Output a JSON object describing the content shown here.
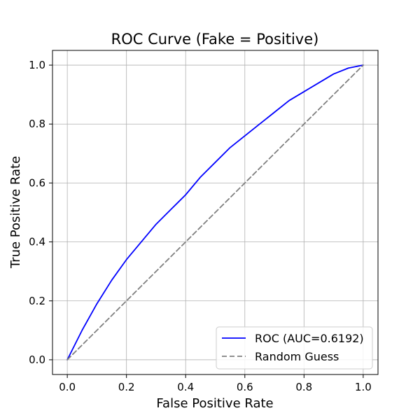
{
  "chart_data": {
    "type": "line",
    "title": "ROC Curve (Fake = Positive)",
    "xlabel": "False Positive Rate",
    "ylabel": "True Positive Rate",
    "xlim": [
      -0.05,
      1.05
    ],
    "ylim": [
      -0.05,
      1.05
    ],
    "xticks": [
      "0.0",
      "0.2",
      "0.4",
      "0.6",
      "0.8",
      "1.0"
    ],
    "yticks": [
      "0.0",
      "0.2",
      "0.4",
      "0.6",
      "0.8",
      "1.0"
    ],
    "grid": true,
    "legend_position": "lower-right",
    "series": [
      {
        "name": "ROC (AUC=0.6192)",
        "color": "#0000ff",
        "style": "solid",
        "x": [
          0.0,
          0.02,
          0.05,
          0.1,
          0.15,
          0.2,
          0.25,
          0.3,
          0.35,
          0.4,
          0.45,
          0.5,
          0.55,
          0.6,
          0.65,
          0.7,
          0.75,
          0.8,
          0.85,
          0.9,
          0.95,
          1.0
        ],
        "y": [
          0.0,
          0.04,
          0.1,
          0.19,
          0.27,
          0.34,
          0.4,
          0.46,
          0.51,
          0.56,
          0.62,
          0.67,
          0.72,
          0.76,
          0.8,
          0.84,
          0.88,
          0.91,
          0.94,
          0.97,
          0.99,
          1.0
        ]
      },
      {
        "name": "Random Guess",
        "color": "#808080",
        "style": "dashed",
        "x": [
          0.0,
          1.0
        ],
        "y": [
          0.0,
          1.0
        ]
      }
    ]
  }
}
